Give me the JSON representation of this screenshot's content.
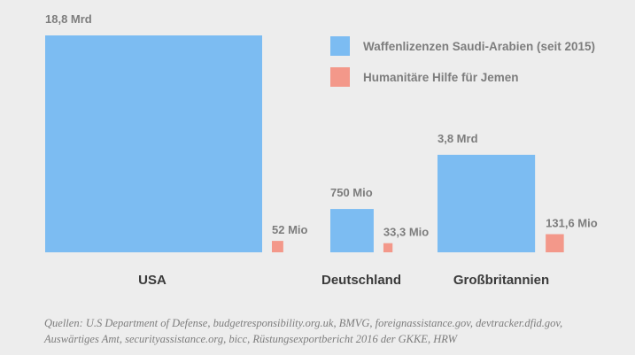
{
  "chart_data": {
    "type": "area",
    "categories": [
      "USA",
      "Deutschland",
      "Großbritannien"
    ],
    "series": [
      {
        "name": "Waffenlizenzen Saudi-Arabien (seit 2015)",
        "values": [
          18800000000,
          750000000,
          3800000000
        ],
        "labels": [
          "18,8 Mrd",
          "750 Mio",
          "3,8 Mrd"
        ],
        "color": "#7cbcf2"
      },
      {
        "name": "Humanitäre Hilfe für Jemen",
        "values": [
          52000000,
          33300000,
          131600000
        ],
        "labels": [
          "52 Mio",
          "33,3 Mio",
          "131,6 Mio"
        ],
        "color": "#f3988a"
      }
    ],
    "grid": false,
    "legend_position": "top-right"
  },
  "source_lines": [
    "Quellen: U.S Department of Defense, budgetresponsibility.org.uk, BMVG, foreignassistance.gov, devtracker.dfid.gov,",
    "Auswärtiges Amt, securityassistance.org, bicc, Rüstungsexportbericht 2016 der GKKE, HRW"
  ]
}
